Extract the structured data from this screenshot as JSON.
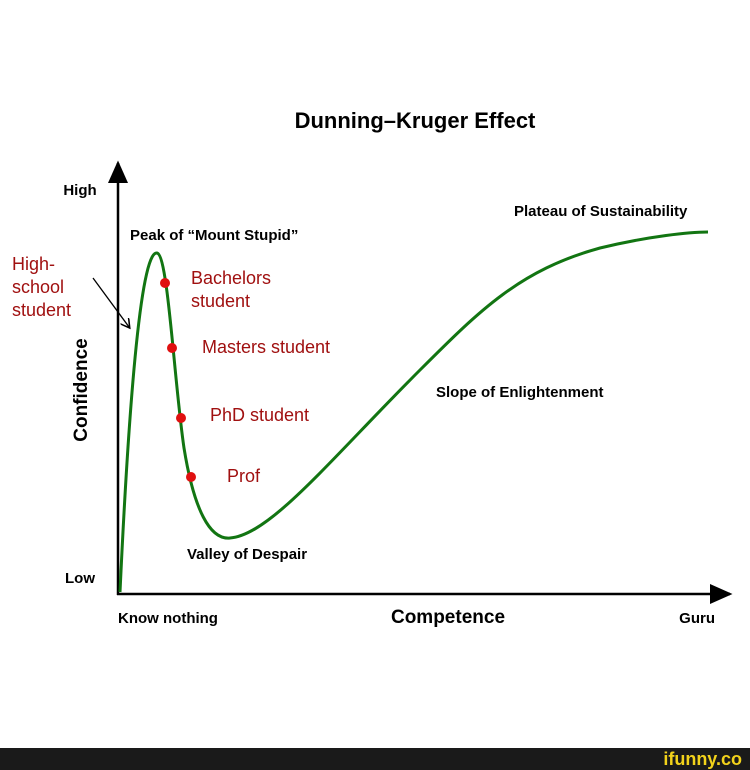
{
  "title": "Dunning–Kruger Effect",
  "y_axis": {
    "label": "Confidence",
    "high": "High",
    "low": "Low"
  },
  "x_axis": {
    "label": "Competence",
    "start": "Know nothing",
    "end": "Guru"
  },
  "regions": [
    "Peak of “Mount Stupid”",
    "Valley of Despair",
    "Slope of Enlightenment",
    "Plateau of Sustainability"
  ],
  "points": [
    {
      "lines": [
        "Bachelors",
        "student"
      ]
    },
    {
      "lines": [
        "Masters student"
      ]
    },
    {
      "lines": [
        "PhD student"
      ]
    },
    {
      "lines": [
        "Prof"
      ]
    }
  ],
  "annotation": {
    "lines": [
      "High-",
      "school",
      "student"
    ]
  },
  "watermark": "ifunny.co"
}
